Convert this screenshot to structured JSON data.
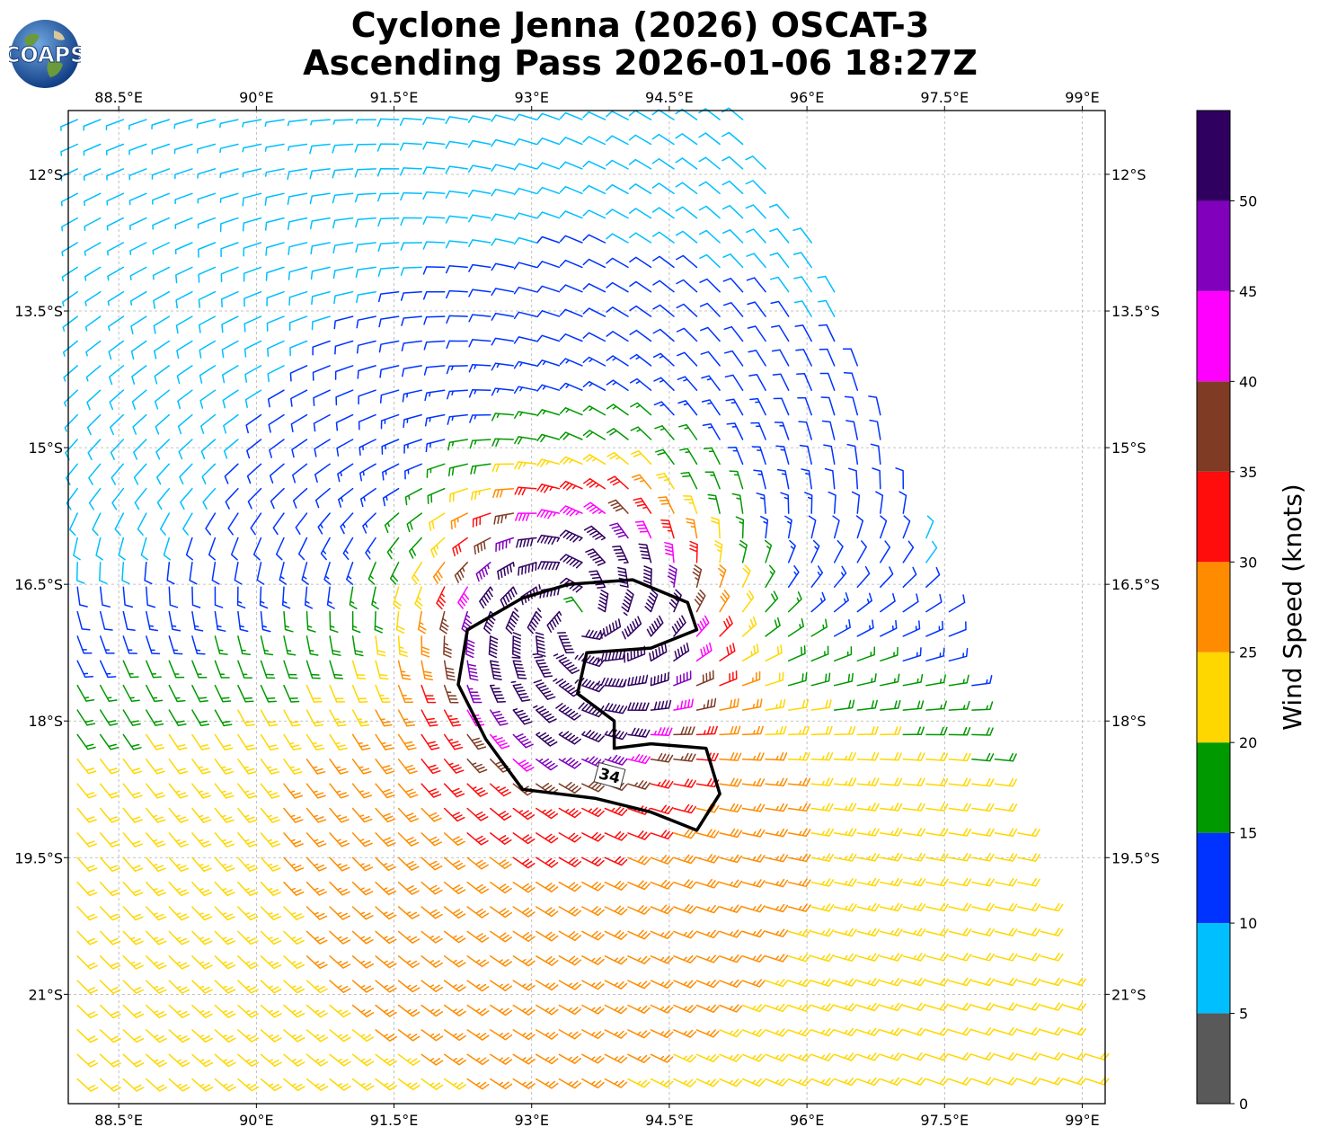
{
  "title": {
    "line1": "Cyclone Jenna (2026) OSCAT-3",
    "line2": "Ascending Pass 2026-01-06 18:27Z"
  },
  "logo_text": "COAPS",
  "colors": {
    "ocean_dark": "#1a4e9c",
    "ocean_light": "#2f78c6",
    "land": "#6b9a3c",
    "contour": "#000000",
    "grid": "#b0b0b0"
  },
  "chart_data": {
    "type": "wind-barb-map",
    "title": "Cyclone Jenna (2026) OSCAT-3 Ascending Pass 2026-01-06 18:27Z",
    "xlim": [
      87.95,
      99.25
    ],
    "ylim": [
      -22.2,
      -11.3
    ],
    "x_ticks": [
      88.5,
      90,
      91.5,
      93,
      94.5,
      96,
      97.5,
      99
    ],
    "x_tick_labels": [
      "88.5°E",
      "90°E",
      "91.5°E",
      "93°E",
      "94.5°E",
      "96°E",
      "97.5°E",
      "99°E"
    ],
    "y_ticks": [
      -12,
      -13.5,
      -15,
      -16.5,
      -18,
      -19.5,
      -21
    ],
    "y_tick_labels": [
      "12°S",
      "13.5°S",
      "15°S",
      "16.5°S",
      "18°S",
      "19.5°S",
      "21°S"
    ],
    "grid": true,
    "storm_center": {
      "lon": 93.5,
      "lat": -16.9
    },
    "contour_label": "34",
    "contour_level_knots": 34,
    "colorbar": {
      "label": "Wind Speed (knots)",
      "bounds": [
        0,
        5,
        10,
        15,
        20,
        25,
        30,
        35,
        40,
        45,
        50,
        55
      ],
      "tick_labels": [
        "0",
        "5",
        "10",
        "15",
        "20",
        "25",
        "30",
        "35",
        "40",
        "45",
        "50"
      ],
      "colors": [
        "#595959",
        "#00bfff",
        "#0033ff",
        "#009900",
        "#ffd700",
        "#ff8c00",
        "#ff0d0d",
        "#7f3b24",
        "#ff00ff",
        "#8000bb",
        "#300060"
      ]
    }
  }
}
